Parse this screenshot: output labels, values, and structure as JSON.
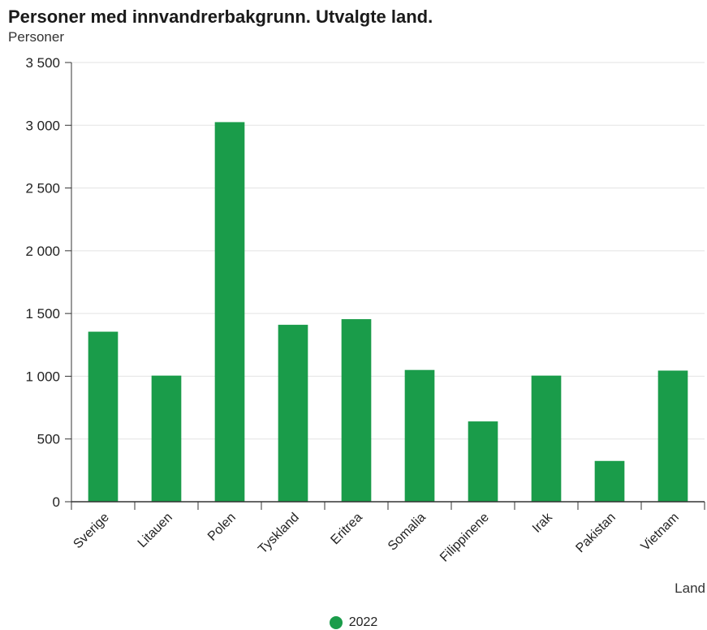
{
  "chart_data": {
    "type": "bar",
    "title": "Personer med innvandrerbakgrunn. Utvalgte land.",
    "ylabel": "Personer",
    "xlabel": "Land",
    "categories": [
      "Sverige",
      "Litauen",
      "Polen",
      "Tyskland",
      "Eritrea",
      "Somalia",
      "Filippinene",
      "Irak",
      "Pakistan",
      "Vietnam"
    ],
    "series": [
      {
        "name": "2022",
        "values": [
          1355,
          1005,
          3025,
          1410,
          1455,
          1050,
          640,
          1005,
          325,
          1045
        ]
      }
    ],
    "ylim": [
      0,
      3500
    ],
    "yticks": [
      0,
      500,
      1000,
      1500,
      2000,
      2500,
      3000,
      3500
    ],
    "ytick_labels": [
      "0",
      "500",
      "1 000",
      "1 500",
      "2 000",
      "2 500",
      "3 000",
      "3 500"
    ],
    "grid": true,
    "legend_position": "bottom",
    "bar_color": "#1a9c4a",
    "grid_color": "#e3e3e3",
    "axis_color": "#333333"
  }
}
